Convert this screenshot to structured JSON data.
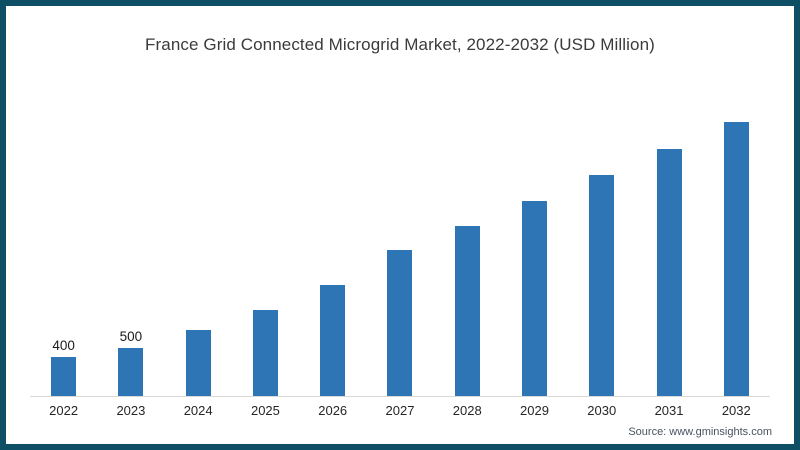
{
  "title": "France Grid Connected Microgrid Market, 2022-2032 (USD Million)",
  "source_note": "Source: www.gminsights.com",
  "colors": {
    "bar": "#2e75b5",
    "frame_border": "#0e4f66",
    "axis_line": "#d9d9d9",
    "title_text": "#3b3b3b"
  },
  "chart_data": {
    "type": "bar",
    "title": "France Grid Connected Microgrid Market, 2022-2032 (USD Million)",
    "categories": [
      "2022",
      "2023",
      "2024",
      "2025",
      "2026",
      "2027",
      "2028",
      "2029",
      "2030",
      "2031",
      "2032"
    ],
    "values": [
      400,
      500,
      680,
      890,
      1150,
      1515,
      1755,
      2015,
      2290,
      2560,
      2830
    ],
    "data_labels": [
      "400",
      "500",
      "",
      "",
      "",
      "",
      "",
      "",
      "",
      "",
      ""
    ],
    "xlabel": "",
    "ylabel": "",
    "ylim": [
      0,
      3000
    ],
    "grid": false,
    "legend": false,
    "y_axis_visible": false
  }
}
